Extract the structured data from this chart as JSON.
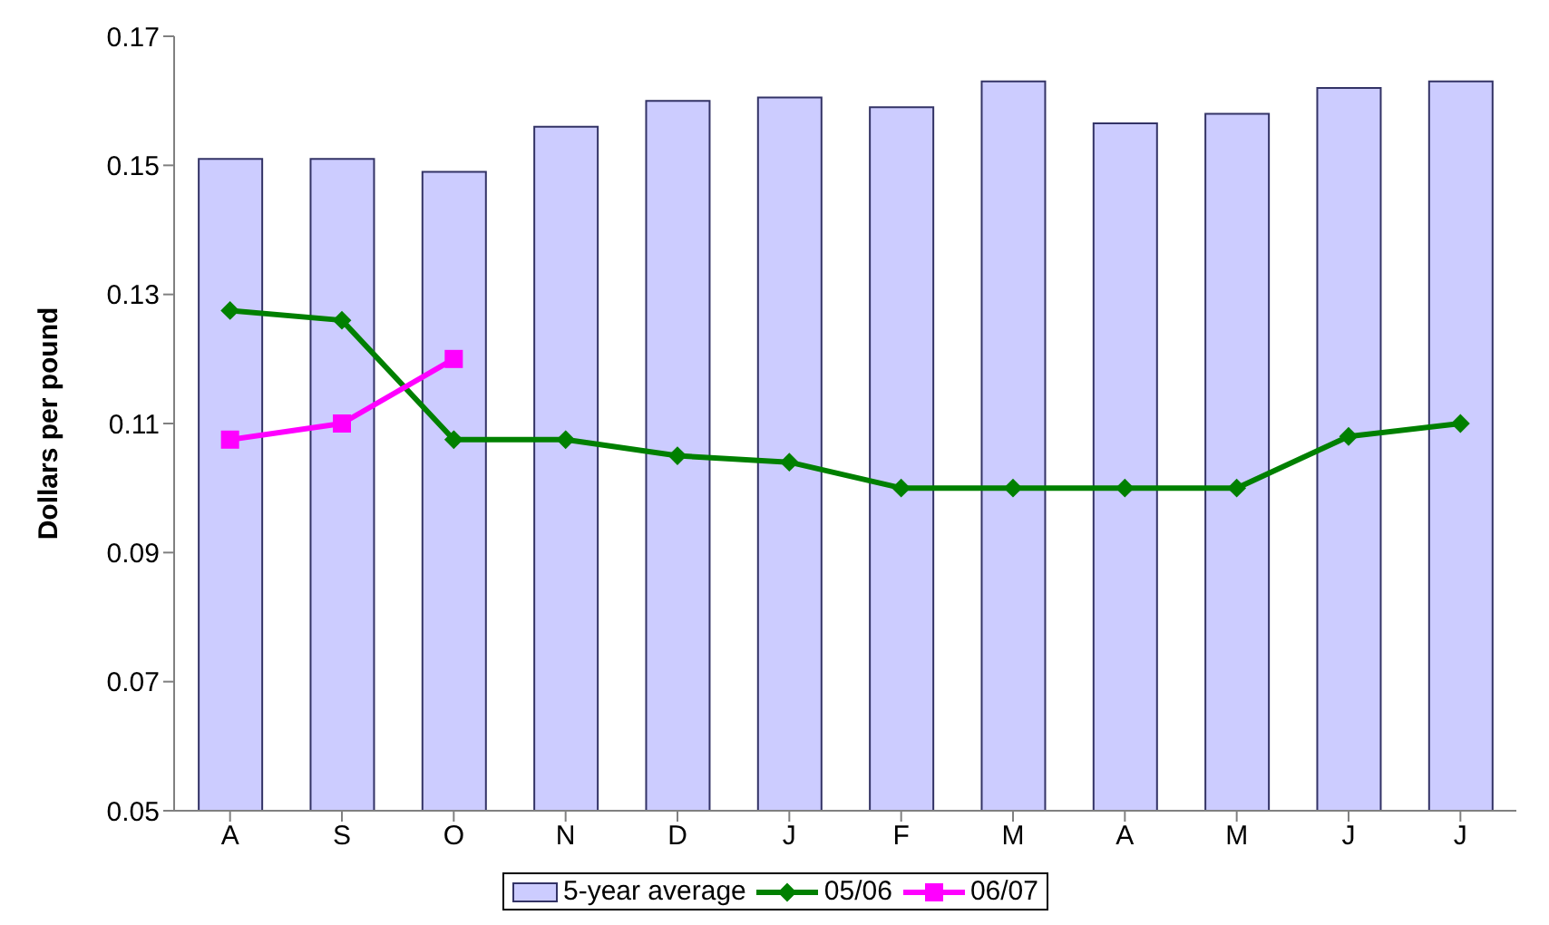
{
  "chart_data": {
    "type": "bar",
    "ylabel": "Dollars per pound",
    "categories": [
      "A",
      "S",
      "O",
      "N",
      "D",
      "J",
      "F",
      "M",
      "A",
      "M",
      "J",
      "J"
    ],
    "series": [
      {
        "name": "5-year average",
        "color": "#ccccff",
        "values": [
          0.151,
          0.151,
          0.149,
          0.156,
          0.16,
          0.1605,
          0.159,
          0.163,
          0.1565,
          0.158,
          0.162,
          0.163
        ]
      },
      {
        "name": "05/06",
        "type": "line",
        "color": "#008000",
        "marker": "diamond",
        "values": [
          0.1275,
          0.126,
          0.1075,
          0.1075,
          0.105,
          0.104,
          0.1,
          0.1,
          0.1,
          0.1,
          0.108,
          0.11
        ]
      },
      {
        "name": "06/07",
        "type": "line",
        "color": "#ff00ff",
        "marker": "square",
        "values": [
          0.1075,
          0.11,
          0.12,
          null,
          null,
          null,
          null,
          null,
          null,
          null,
          null,
          null
        ]
      }
    ],
    "ylim": [
      0.05,
      0.17
    ],
    "yticks": [
      0.05,
      0.07,
      0.09,
      0.11,
      0.13,
      0.15,
      0.17
    ],
    "grid": false,
    "legend": "bottom"
  }
}
